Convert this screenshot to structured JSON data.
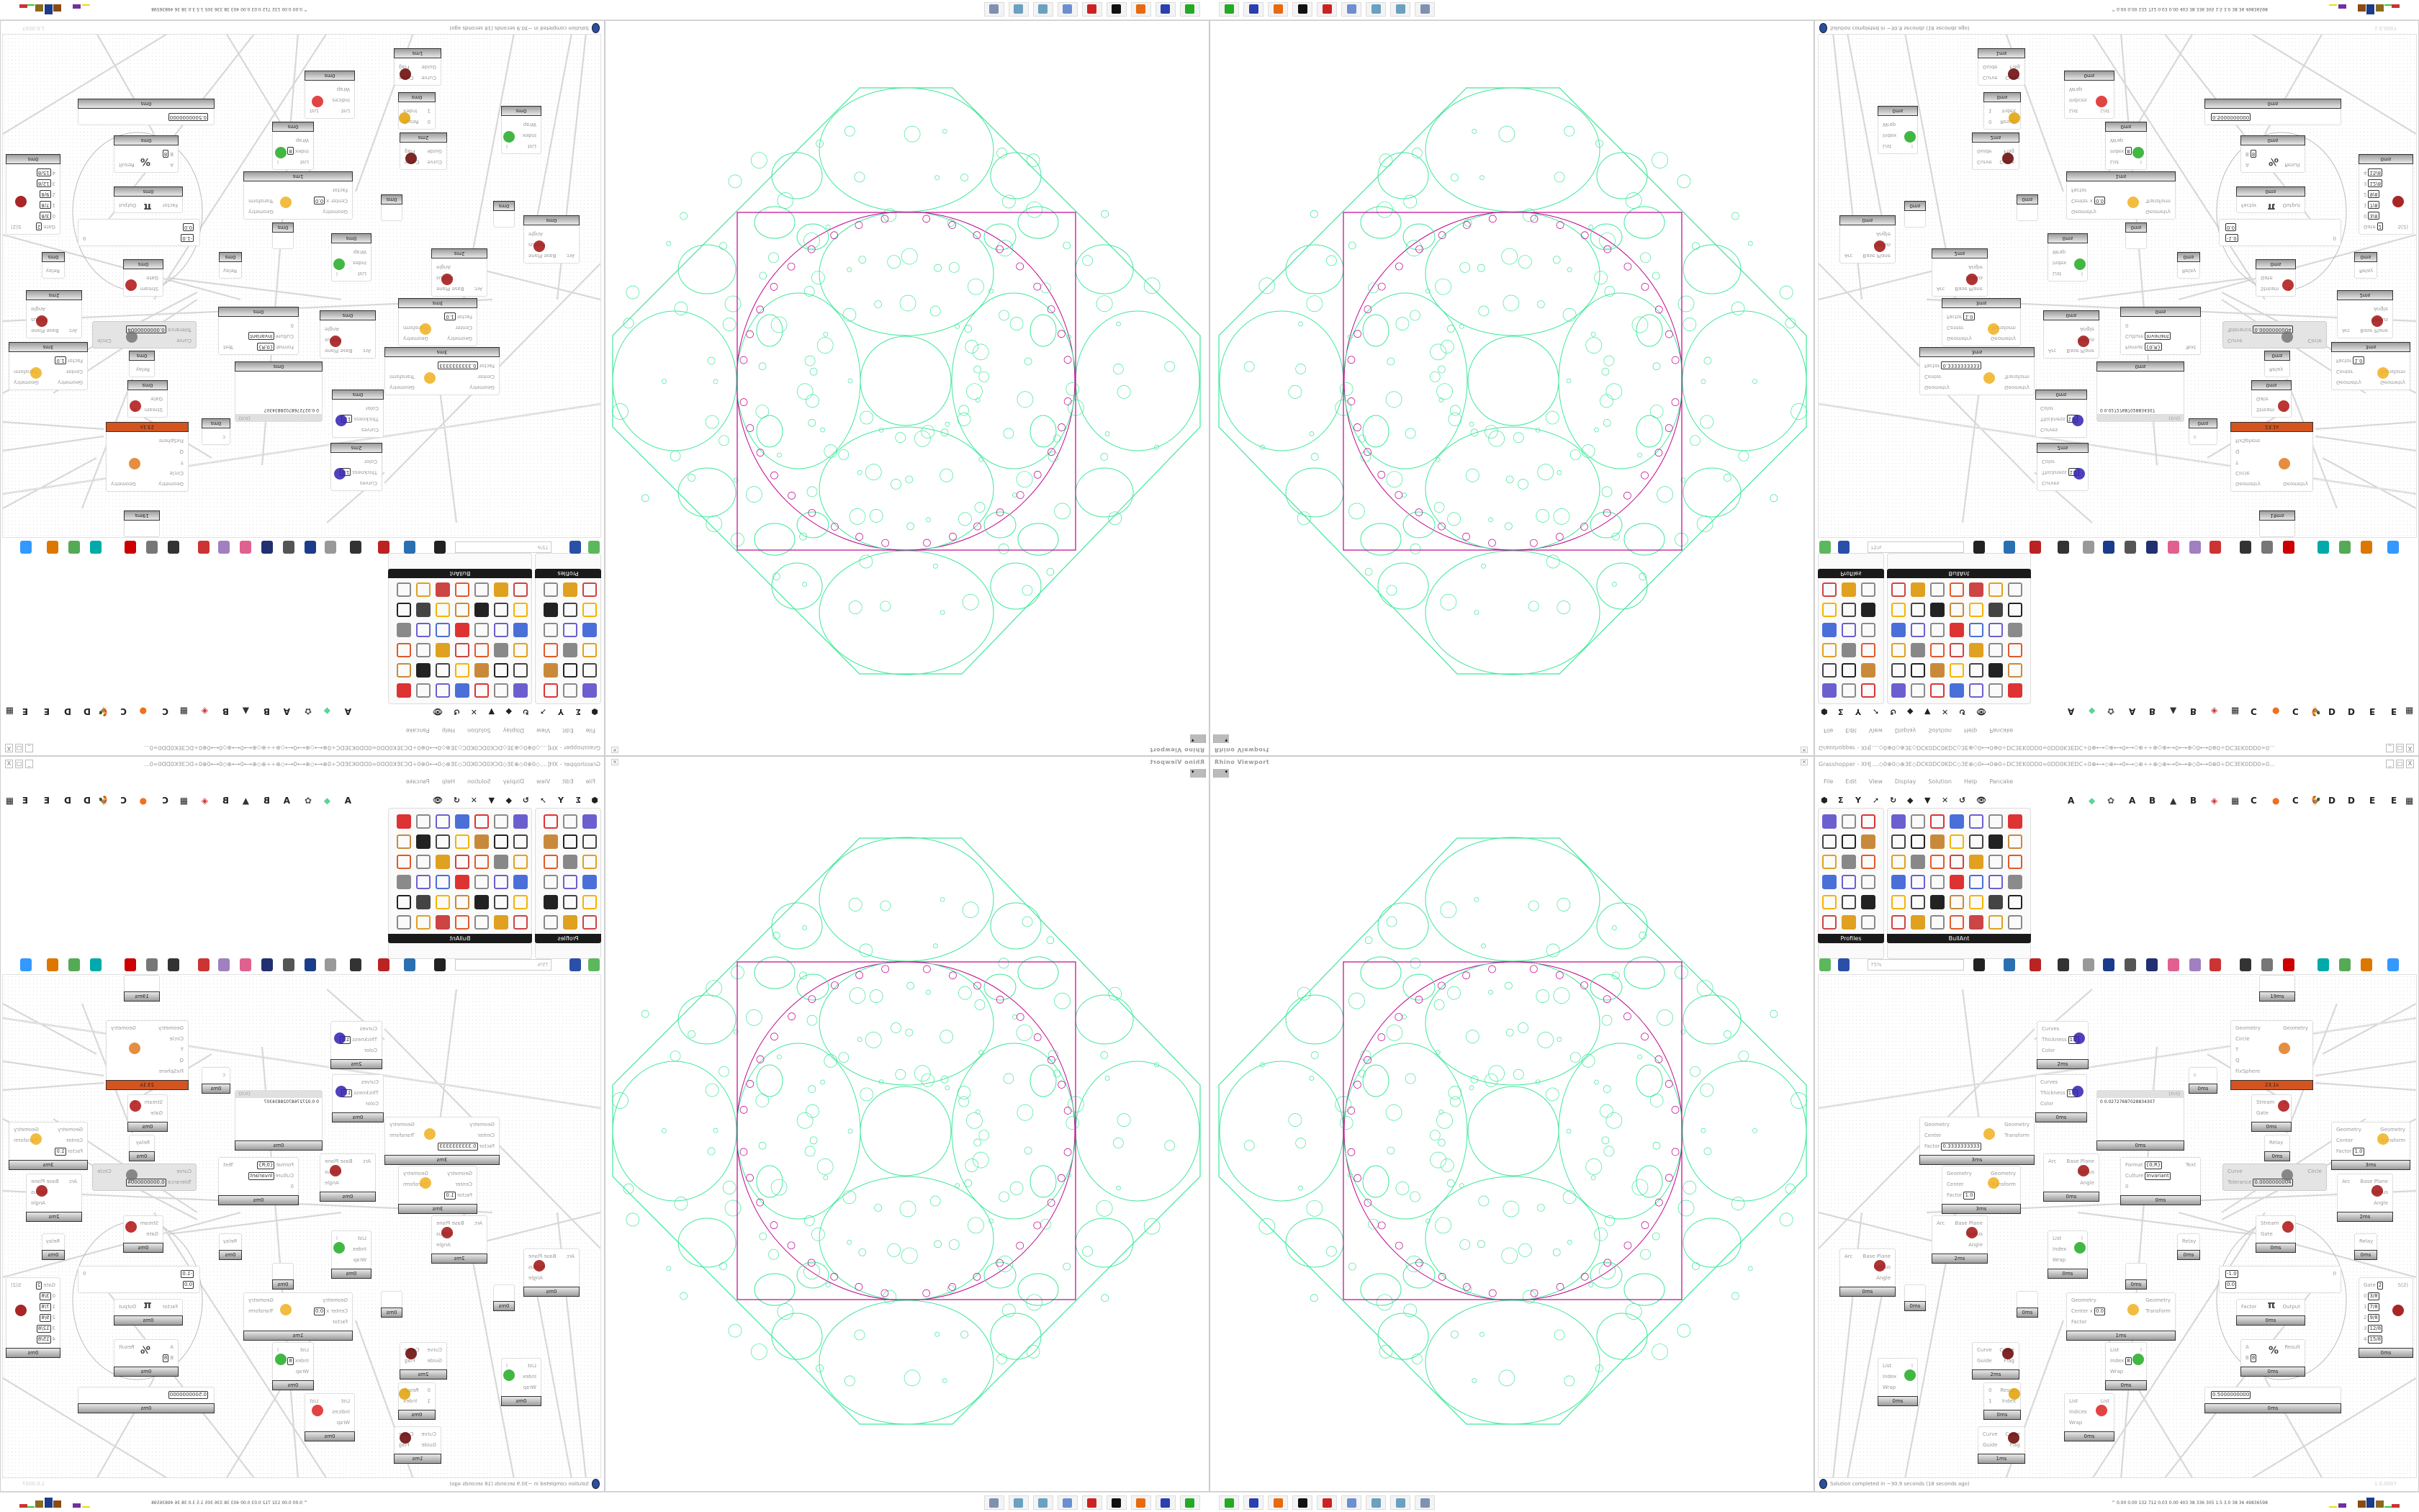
{
  "viewport": {
    "title": "Rhino Viewport",
    "close": "✕",
    "dropdown": "▾"
  },
  "grasshopper": {
    "title": "Grasshopper - XH[....◇0⊕0◇⊕3E◇DCK0DC0KDC◇3E⊕◇0⟷0⊕0÷DC3EK0DD0∞0DD0K3EDC÷0⊕⟷◇⊕⟷0⟷◇⊕÷÷⊕◇⊕⟷0⟷⊕◇0⟷0⊕0÷DC3EK0DD0∞0...",
    "window_buttons": [
      "_",
      "□",
      "X"
    ],
    "menu": [
      "File",
      "Edit",
      "View",
      "Display",
      "Solution",
      "Help",
      "Pancake"
    ],
    "tab_letters": [
      "A",
      "A",
      "B",
      "B",
      "C",
      "C",
      "D",
      "D",
      "E",
      "E"
    ],
    "panels": {
      "profiles": "Profiles",
      "bullant": "BullAnt",
      "expand": "+"
    },
    "toolbar": {
      "zoom": "75%"
    },
    "status": "Solution completed in ~30.9 seconds (18 seconds ago)",
    "version": "1.0.0007",
    "accent_running": "#d4541f",
    "canvas": {
      "nodes": [
        {
          "inputs": [
            {
              "label": "Curves"
            },
            {
              "label": "Thickness",
              "val": "1.0"
            },
            {
              "label": "Color"
            }
          ],
          "outputs": [],
          "footer": "2ms",
          "icon": "preview-icon"
        },
        {
          "inputs": [
            {
              "label": "Curves"
            },
            {
              "label": "Thickness",
              "val": "1.0"
            },
            {
              "label": "Color"
            }
          ],
          "outputs": [],
          "footer": "0ms",
          "icon": "preview-icon"
        },
        {
          "inputs": [
            {
              "label": "Geometry"
            },
            {
              "label": "Center"
            },
            {
              "label": "Factor",
              "val": "0.3333333333"
            }
          ],
          "outputs": [
            {
              "label": "Geometry"
            },
            {
              "label": "Transform"
            }
          ],
          "footer": "3ms",
          "icon": "scale-icon"
        },
        {
          "inputs": [
            {
              "label": "Geometry"
            },
            {
              "label": "Center"
            },
            {
              "label": "Factor",
              "val": "1.0"
            }
          ],
          "outputs": [
            {
              "label": "Geometry"
            },
            {
              "label": "Transform"
            }
          ],
          "footer": "3ms",
          "icon": "scale-icon"
        },
        {
          "inputs": [
            {
              "label": "Arc"
            }
          ],
          "outputs": [
            {
              "label": "Base Plane"
            },
            {
              "label": "Radius"
            },
            {
              "label": "Angle"
            }
          ],
          "footer": "0ms",
          "icon": "arc-icon"
        },
        {
          "panel": true,
          "header": "{0;0}",
          "text": "0 0.02727687028834307",
          "footer": "0ms"
        },
        {
          "inputs": [
            {
              "label": "Geometry"
            },
            {
              "label": "Circle"
            },
            {
              "label": "T"
            },
            {
              "label": "Q"
            },
            {
              "label": "FixSphere"
            }
          ],
          "outputs": [
            {
              "label": "Geometry"
            }
          ],
          "footer": "23.1s",
          "hot": true,
          "icon": "kangaroo-icon"
        },
        {
          "inputs": [
            {
              "label": "c"
            }
          ],
          "outputs": [],
          "footer": "0ms"
        },
        {
          "inputs": [
            {
              "label": "Stream"
            },
            {
              "label": "Gate"
            }
          ],
          "outputs": [
            {
              "label": "0"
            }
          ],
          "footer": "0ms",
          "icon": "stream-gate-icon"
        },
        {
          "inputs": [
            {
              "label": "Relay"
            }
          ],
          "outputs": [],
          "footer": "0ms"
        },
        {
          "inputs": [
            {
              "label": "Format",
              "val": "{0;R}"
            },
            {
              "label": "Culture",
              "val": "Invariant"
            },
            {
              "label": "0"
            }
          ],
          "outputs": [
            {
              "label": "Text"
            }
          ],
          "footer": "0ms"
        },
        {
          "inputs": [
            {
              "label": "Curve"
            },
            {
              "label": "Tolerance",
              "val": "0.0000000004"
            }
          ],
          "outputs": [
            {
              "label": "Circle"
            }
          ],
          "disabled": true,
          "icon": "circle-icon"
        },
        {
          "inputs": [
            {
              "label": "Geometry"
            },
            {
              "label": "Center"
            },
            {
              "label": "Factor",
              "val": "1.0"
            }
          ],
          "outputs": [
            {
              "label": "Geometry"
            },
            {
              "label": "Transform"
            }
          ],
          "footer": "3ms",
          "icon": "scale-icon"
        },
        {
          "inputs": [
            {
              "label": "Arc"
            }
          ],
          "outputs": [
            {
              "label": "Base Plane"
            },
            {
              "label": "Radius"
            },
            {
              "label": "Angle"
            }
          ],
          "footer": "2ms",
          "icon": "arc-icon"
        },
        {
          "inputs": [
            {
              "label": "Arc"
            }
          ],
          "outputs": [
            {
              "label": "Base Plane"
            },
            {
              "label": "Radius"
            },
            {
              "label": "Angle"
            }
          ],
          "footer": "2ms",
          "icon": "arc-icon"
        },
        {
          "inputs": [
            {
              "label": "Arc"
            }
          ],
          "outputs": [
            {
              "label": "Base Plane"
            },
            {
              "label": "Radius"
            },
            {
              "label": "Angle"
            }
          ],
          "footer": "0ms",
          "icon": "arc-icon"
        },
        {
          "inputs": [
            {
              "label": "List"
            },
            {
              "label": "Index"
            },
            {
              "label": "Wrap"
            }
          ],
          "outputs": [
            {
              "label": "i"
            }
          ],
          "footer": "0ms",
          "icon": "list-item-icon"
        },
        {
          "inputs": [
            {
              "label": "Stream"
            },
            {
              "label": "Gate"
            }
          ],
          "outputs": [
            {
              "label": "0"
            }
          ],
          "footer": "0ms",
          "icon": "stream-gate-icon"
        },
        {
          "inputs": [
            {
              "label": "Relay"
            }
          ],
          "outputs": [],
          "footer": "0ms"
        },
        {
          "inputs": [
            {
              "label": "Relay"
            }
          ],
          "outputs": [],
          "footer": "0ms"
        },
        {
          "inputs": [
            {
              "label": "",
              "val": "-1.0"
            },
            {
              "label": "",
              "val": "0.0"
            }
          ],
          "outputs": [
            {
              "label": "0"
            }
          ],
          "slider": true
        },
        {
          "inputs": [
            {
              "label": "Geometry"
            },
            {
              "label": "Center x",
              "val": "0.0"
            },
            {
              "label": "Factor"
            }
          ],
          "outputs": [
            {
              "label": "Geometry"
            },
            {
              "label": "Transform"
            }
          ],
          "footer": "1ms",
          "icon": "scale-icon"
        },
        {
          "inputs": [
            {
              "label": "Factor"
            }
          ],
          "outputs": [
            {
              "label": "Output"
            }
          ],
          "footer": "0ms",
          "icon": "pi-icon",
          "glyph": "π"
        },
        {
          "inputs": [
            {
              "label": "A"
            },
            {
              "label": "B",
              "val": "8"
            }
          ],
          "outputs": [
            {
              "label": "Result"
            }
          ],
          "footer": "0ms",
          "icon": "modulus-icon",
          "glyph": "%"
        },
        {
          "inputs": [
            {
              "label": "",
              "val": "0.5000000000"
            }
          ],
          "outputs": [],
          "footer": "0ms",
          "slider": true
        },
        {
          "inputs": [
            {
              "label": "Gate",
              "val": "2"
            },
            {
              "label": "0",
              "val": "3/8"
            },
            {
              "label": "1",
              "val": "7/8"
            },
            {
              "label": "2",
              "val": "9/8"
            },
            {
              "label": "3",
              "val": "12/8"
            },
            {
              "label": "4",
              "val": "15/8"
            }
          ],
          "outputs": [
            {
              "label": "S(2)"
            }
          ],
          "footer": "0ms",
          "icon": "stream-filter-icon"
        },
        {
          "inputs": [
            {
              "label": "Curve"
            },
            {
              "label": "Guide"
            }
          ],
          "outputs": [
            {
              "label": "Curve"
            },
            {
              "label": "Flag"
            }
          ],
          "footer": "2ms",
          "icon": "flip-icon"
        },
        {
          "inputs": [
            {
              "label": "Curve"
            },
            {
              "label": "Guide"
            }
          ],
          "outputs": [
            {
              "label": "Curve"
            },
            {
              "label": "Flag"
            }
          ],
          "footer": "1ms",
          "icon": "flip-icon"
        },
        {
          "inputs": [
            {
              "label": "List"
            },
            {
              "label": "Index"
            },
            {
              "label": "Wrap"
            }
          ],
          "outputs": [
            {
              "label": "i"
            }
          ],
          "footer": "0ms",
          "icon": "list-item-icon"
        },
        {
          "inputs": [
            {
              "label": "0"
            },
            {
              "label": "1"
            }
          ],
          "outputs": [
            {
              "label": "Result"
            },
            {
              "label": "Index"
            }
          ],
          "footer": "0ms",
          "icon": "pick-icon"
        },
        {
          "inputs": [
            {
              "label": "List"
            },
            {
              "label": "Index",
              "val": "8"
            },
            {
              "label": "Wrap"
            }
          ],
          "outputs": [
            {
              "label": "i"
            }
          ],
          "footer": "0ms",
          "icon": "list-item-icon"
        },
        {
          "inputs": [
            {
              "label": "List"
            },
            {
              "label": "Indices"
            },
            {
              "label": "Wrap"
            }
          ],
          "outputs": [
            {
              "label": "List"
            }
          ],
          "footer": "0ms",
          "icon": "cull-icon"
        },
        {
          "inputs": [],
          "outputs": [],
          "footer": "0ms"
        },
        {
          "inputs": [],
          "outputs": [],
          "footer": "0ms"
        },
        {
          "inputs": [],
          "outputs": [],
          "footer": "0ms"
        },
        {
          "inputs": [],
          "outputs": [],
          "footer": "19ms"
        }
      ]
    }
  },
  "taskbar": {
    "stats": "0.00 0.00 132 712 0.03 0.00 403 38 336 305 1.5 3.0 38 36 49836598",
    "expand": "^",
    "apps": [
      "terminal-icon",
      "save-64-icon",
      "firefox-icon",
      "rhino-icon",
      "lifesaver-icon",
      "calculator-icon",
      "notepad-icon",
      "notepad-icon",
      "scanner-icon"
    ]
  },
  "colors": {
    "packing": "#3ee89a",
    "boundary": "#c0008c",
    "bullant_bar": "#1a1a1a"
  }
}
